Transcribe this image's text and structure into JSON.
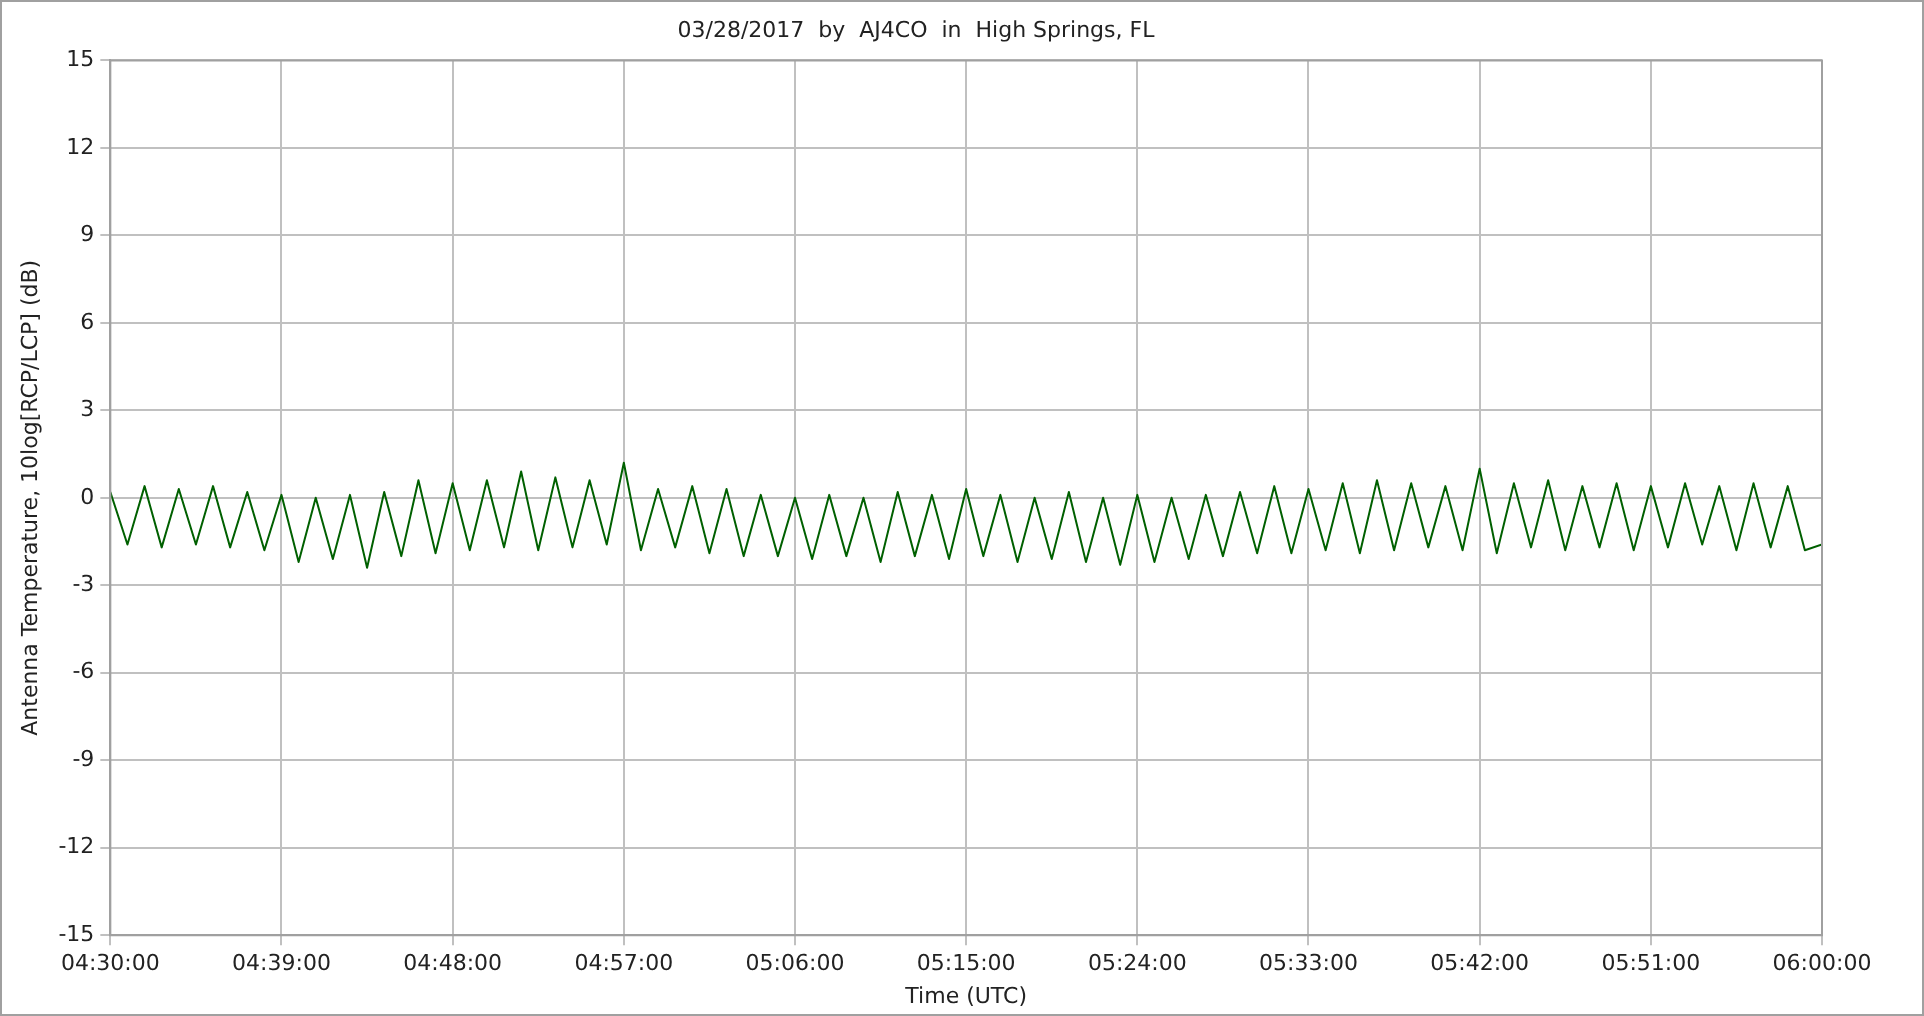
{
  "chart_data": {
    "type": "line",
    "title": "03/28/2017  by  AJ4CO  in  High Springs, FL",
    "xlabel": "Time (UTC)",
    "ylabel": "Antenna Temperature, 10log[RCP/LCP] (dB)",
    "xlim": [
      4.5,
      6.0
    ],
    "xticks": [
      {
        "value": 4.5,
        "label": "04:30:00"
      },
      {
        "value": 4.65,
        "label": "04:39:00"
      },
      {
        "value": 4.8,
        "label": "04:48:00"
      },
      {
        "value": 4.95,
        "label": "04:57:00"
      },
      {
        "value": 5.1,
        "label": "05:06:00"
      },
      {
        "value": 5.25,
        "label": "05:15:00"
      },
      {
        "value": 5.4,
        "label": "05:24:00"
      },
      {
        "value": 5.55,
        "label": "05:33:00"
      },
      {
        "value": 5.7,
        "label": "05:42:00"
      },
      {
        "value": 5.85,
        "label": "05:51:00"
      },
      {
        "value": 6.0,
        "label": "06:00:00"
      }
    ],
    "ylim": [
      -15,
      15
    ],
    "yticks": [
      -15,
      -12,
      -9,
      -6,
      -3,
      0,
      3,
      6,
      9,
      12,
      15
    ],
    "grid": true,
    "marker": "none",
    "line_style": "solid",
    "series": [
      {
        "color": "#006000",
        "x": [
          4.5,
          4.515,
          4.53,
          4.545,
          4.56,
          4.575,
          4.59,
          4.605,
          4.62,
          4.635,
          4.65,
          4.665,
          4.68,
          4.695,
          4.71,
          4.725,
          4.74,
          4.755,
          4.77,
          4.785,
          4.8,
          4.815,
          4.83,
          4.845,
          4.86,
          4.875,
          4.89,
          4.905,
          4.92,
          4.935,
          4.95,
          4.965,
          4.98,
          4.995,
          5.01,
          5.025,
          5.04,
          5.055,
          5.07,
          5.085,
          5.1,
          5.115,
          5.13,
          5.145,
          5.16,
          5.175,
          5.19,
          5.205,
          5.22,
          5.235,
          5.25,
          5.265,
          5.28,
          5.295,
          5.31,
          5.325,
          5.34,
          5.355,
          5.37,
          5.385,
          5.4,
          5.415,
          5.43,
          5.445,
          5.46,
          5.475,
          5.49,
          5.505,
          5.52,
          5.535,
          5.55,
          5.565,
          5.58,
          5.595,
          5.61,
          5.625,
          5.64,
          5.655,
          5.67,
          5.685,
          5.7,
          5.715,
          5.73,
          5.745,
          5.76,
          5.775,
          5.79,
          5.805,
          5.82,
          5.835,
          5.85,
          5.865,
          5.88,
          5.895,
          5.91,
          5.925,
          5.94,
          5.955,
          5.97,
          5.985,
          6.0
        ],
        "values": [
          0.2,
          -1.6,
          0.4,
          -1.7,
          0.3,
          -1.6,
          0.4,
          -1.7,
          0.2,
          -1.8,
          0.1,
          -2.2,
          0.0,
          -2.1,
          0.1,
          -2.4,
          0.2,
          -2.0,
          0.6,
          -1.9,
          0.5,
          -1.8,
          0.6,
          -1.7,
          0.9,
          -1.8,
          0.7,
          -1.7,
          0.6,
          -1.6,
          1.2,
          -1.8,
          0.3,
          -1.7,
          0.4,
          -1.9,
          0.3,
          -2.0,
          0.1,
          -2.0,
          0.0,
          -2.1,
          0.1,
          -2.0,
          0.0,
          -2.2,
          0.2,
          -2.0,
          0.1,
          -2.1,
          0.3,
          -2.0,
          0.1,
          -2.2,
          0.0,
          -2.1,
          0.2,
          -2.2,
          0.0,
          -2.3,
          0.1,
          -2.2,
          0.0,
          -2.1,
          0.1,
          -2.0,
          0.2,
          -1.9,
          0.4,
          -1.9,
          0.3,
          -1.8,
          0.5,
          -1.9,
          0.6,
          -1.8,
          0.5,
          -1.7,
          0.4,
          -1.8,
          1.0,
          -1.9,
          0.5,
          -1.7,
          0.6,
          -1.8,
          0.4,
          -1.7,
          0.5,
          -1.8,
          0.4,
          -1.7,
          0.5,
          -1.6,
          0.4,
          -1.8,
          0.5,
          -1.7,
          0.4,
          -1.8,
          -1.6
        ]
      }
    ]
  }
}
